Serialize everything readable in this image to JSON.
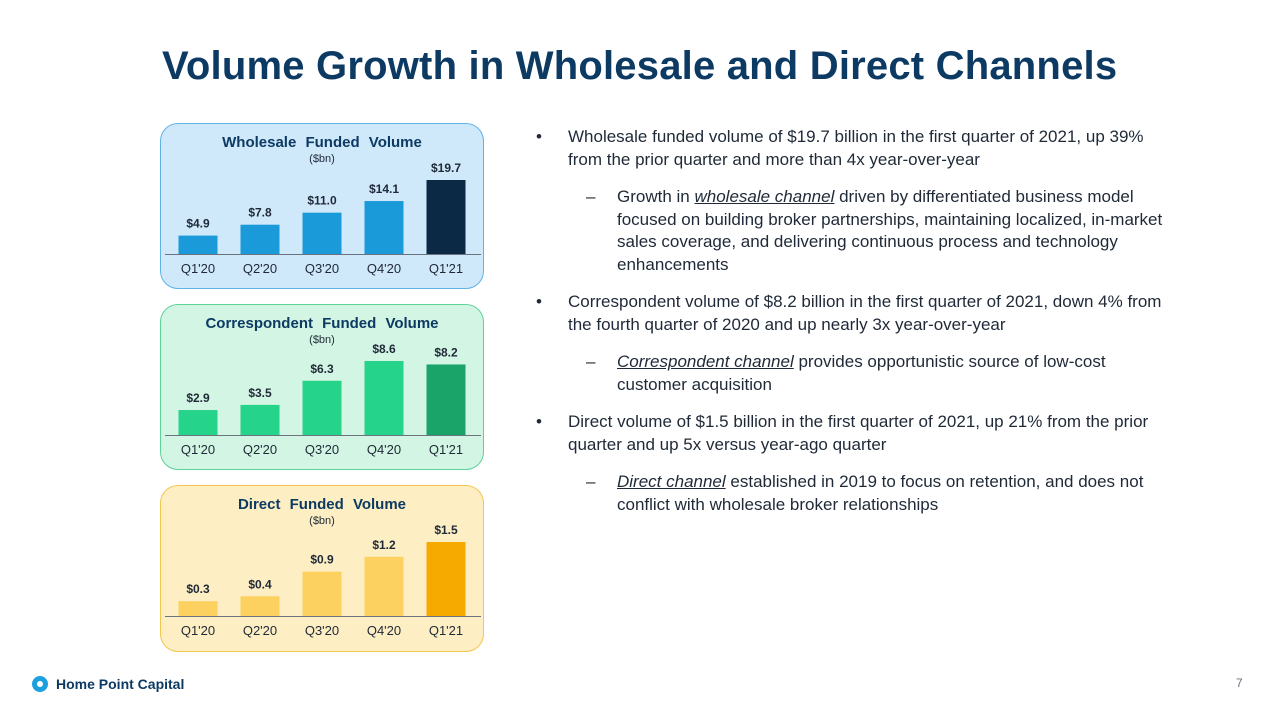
{
  "slide": {
    "title": "Volume Growth in Wholesale and Direct Channels",
    "page_number": "7",
    "logo_text": "Home Point Capital"
  },
  "colors": {
    "title": "#0d3a63",
    "wholesale_bar": "#1a9ad9",
    "wholesale_highlight": "#0b2944",
    "correspondent_bar": "#25d38a",
    "correspondent_highlight": "#1aa46a",
    "direct_bar": "#fcd15f",
    "direct_highlight": "#f6aa00"
  },
  "bullets": [
    {
      "text": "Wholesale funded volume of $19.7 billion in the first quarter of 2021, up 39% from the prior quarter and more than 4x year-over-year",
      "sub": {
        "pre": "Growth in ",
        "em": "wholesale channel",
        "post": " driven by differentiated business model focused on building broker partnerships, maintaining localized, in-market sales coverage, and delivering continuous process and technology enhancements"
      }
    },
    {
      "text": "Correspondent volume of $8.2 billion in the first quarter of 2021, down 4% from the fourth quarter of 2020 and up nearly 3x year-over-year",
      "sub": {
        "pre": "",
        "em": "Correspondent channel",
        "post": " provides opportunistic source of low-cost customer acquisition"
      }
    },
    {
      "text": "Direct volume of $1.5 billion in the first quarter of 2021, up 21% from the prior quarter and up 5x versus year-ago quarter",
      "sub": {
        "pre": "",
        "em": "Direct channel",
        "post": " established in 2019 to focus on retention, and does not conflict with wholesale broker relationships"
      }
    }
  ],
  "bullet_marker": "•",
  "sub_marker": "–",
  "chart_data": [
    {
      "type": "bar",
      "title": "Wholesale Funded Volume",
      "unit": "($bn)",
      "categories": [
        "Q1'20",
        "Q2'20",
        "Q3'20",
        "Q4'20",
        "Q1'21"
      ],
      "values": [
        4.9,
        7.8,
        11.0,
        14.1,
        19.7
      ],
      "labels": [
        "$4.9",
        "$7.8",
        "$11.0",
        "$14.1",
        "$19.7"
      ],
      "ylim": [
        0,
        19.7
      ],
      "xlabel": "",
      "ylabel": ""
    },
    {
      "type": "bar",
      "title": "Correspondent Funded Volume",
      "unit": "($bn)",
      "categories": [
        "Q1'20",
        "Q2'20",
        "Q3'20",
        "Q4'20",
        "Q1'21"
      ],
      "values": [
        2.9,
        3.5,
        6.3,
        8.6,
        8.2
      ],
      "labels": [
        "$2.9",
        "$3.5",
        "$6.3",
        "$8.6",
        "$8.2"
      ],
      "ylim": [
        0,
        8.6
      ],
      "xlabel": "",
      "ylabel": ""
    },
    {
      "type": "bar",
      "title": "Direct Funded Volume",
      "unit": "($bn)",
      "categories": [
        "Q1'20",
        "Q2'20",
        "Q3'20",
        "Q4'20",
        "Q1'21"
      ],
      "values": [
        0.3,
        0.4,
        0.9,
        1.2,
        1.5
      ],
      "labels": [
        "$0.3",
        "$0.4",
        "$0.9",
        "$1.2",
        "$1.5"
      ],
      "ylim": [
        0,
        1.5
      ],
      "xlabel": "",
      "ylabel": ""
    }
  ]
}
